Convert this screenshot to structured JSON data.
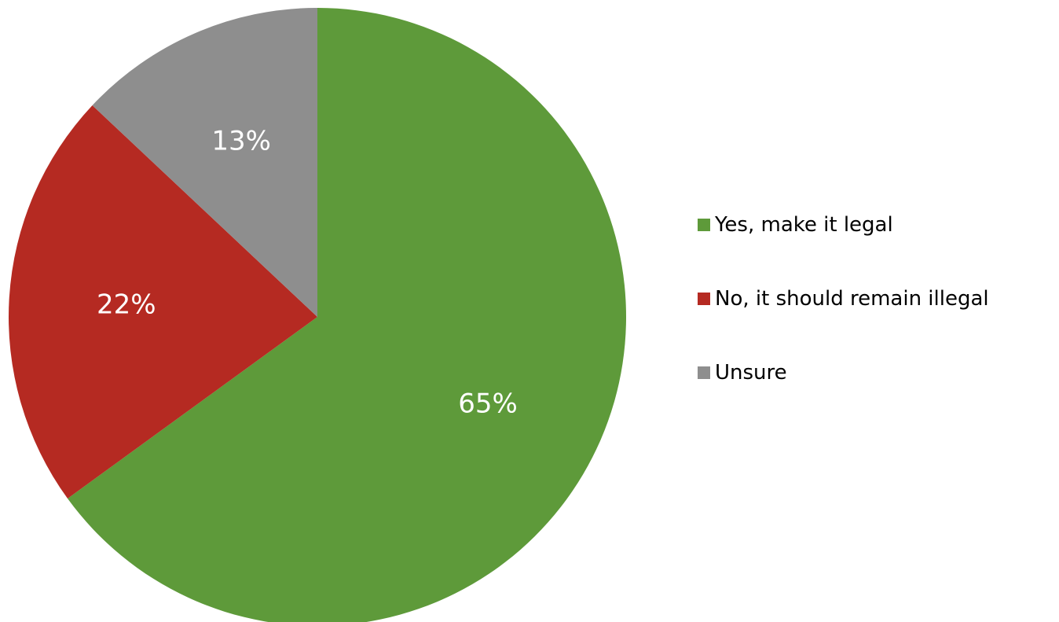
{
  "chart_data": {
    "type": "pie",
    "title": "",
    "slices": [
      {
        "label": "Yes, make it legal",
        "value": 65,
        "display": "65%",
        "color": "#5e9a3a"
      },
      {
        "label": "No, it should remain illegal",
        "value": 22,
        "display": "22%",
        "color": "#b52a22"
      },
      {
        "label": "Unsure",
        "value": 13,
        "display": "13%",
        "color": "#8e8e8e"
      }
    ],
    "start_angle": "12 o'clock",
    "direction": "clockwise",
    "legend": {
      "position": "right"
    },
    "label_color": "#ffffff"
  }
}
